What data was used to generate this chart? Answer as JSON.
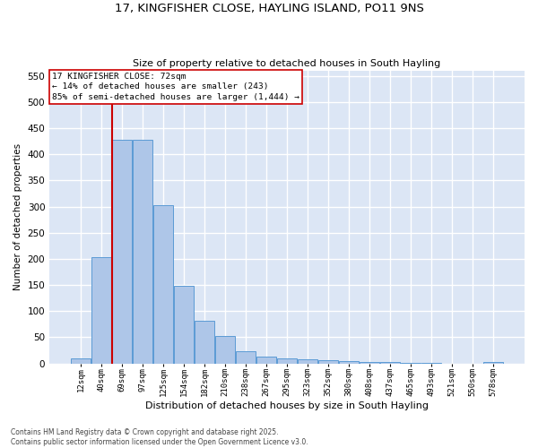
{
  "title_line1": "17, KINGFISHER CLOSE, HAYLING ISLAND, PO11 9NS",
  "title_line2": "Size of property relative to detached houses in South Hayling",
  "xlabel": "Distribution of detached houses by size in South Hayling",
  "ylabel": "Number of detached properties",
  "categories": [
    "12sqm",
    "40sqm",
    "69sqm",
    "97sqm",
    "125sqm",
    "154sqm",
    "182sqm",
    "210sqm",
    "238sqm",
    "267sqm",
    "295sqm",
    "323sqm",
    "352sqm",
    "380sqm",
    "408sqm",
    "437sqm",
    "465sqm",
    "493sqm",
    "521sqm",
    "550sqm",
    "578sqm"
  ],
  "values": [
    10,
    203,
    428,
    428,
    303,
    148,
    82,
    52,
    24,
    13,
    10,
    8,
    6,
    4,
    3,
    2,
    1,
    1,
    0,
    0,
    3
  ],
  "bar_color": "#aec6e8",
  "bar_edge_color": "#5b9bd5",
  "background_color": "#dce6f5",
  "grid_color": "#ffffff",
  "annotation_box_text": "17 KINGFISHER CLOSE: 72sqm\n← 14% of detached houses are smaller (243)\n85% of semi-detached houses are larger (1,444) →",
  "annotation_box_color": "#cc0000",
  "vline_color": "#cc0000",
  "footer_text": "Contains HM Land Registry data © Crown copyright and database right 2025.\nContains public sector information licensed under the Open Government Licence v3.0.",
  "ylim": [
    0,
    560
  ],
  "yticks": [
    0,
    50,
    100,
    150,
    200,
    250,
    300,
    350,
    400,
    450,
    500,
    550
  ]
}
